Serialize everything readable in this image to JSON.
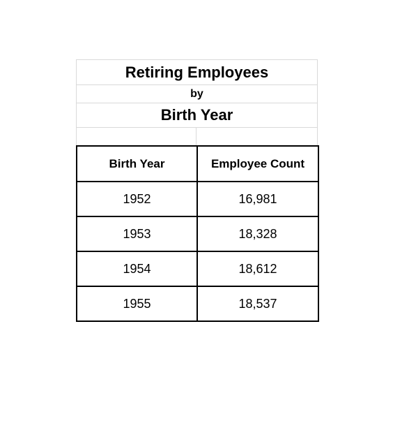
{
  "sheet": {
    "title": "Retiring Employees",
    "by": "by",
    "subtitle": "Birth Year"
  },
  "table": {
    "headers": [
      "Birth Year",
      "Employee Count"
    ],
    "rows": [
      [
        "1952",
        "16,981"
      ],
      [
        "1953",
        "18,328"
      ],
      [
        "1954",
        "18,612"
      ],
      [
        "1955",
        "18,537"
      ]
    ]
  }
}
